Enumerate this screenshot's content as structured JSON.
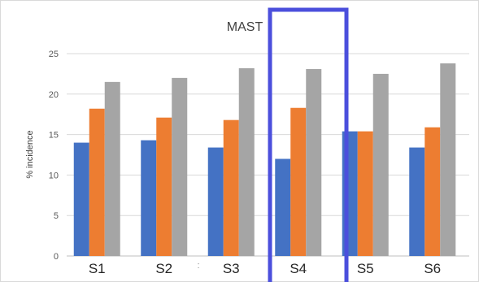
{
  "chart_data": {
    "type": "bar",
    "title": "MAST",
    "xlabel": "",
    "ylabel": "% incidence",
    "categories": [
      "S1",
      "S2",
      "S3",
      "S4",
      "S5",
      "S6"
    ],
    "series": [
      {
        "values": [
          14.0,
          14.3,
          13.4,
          12.0,
          15.4,
          13.4
        ],
        "color": "#4472c4"
      },
      {
        "values": [
          18.2,
          17.1,
          16.8,
          18.3,
          15.4,
          15.9
        ],
        "color": "#ed7d31"
      },
      {
        "values": [
          21.5,
          22.0,
          23.2,
          23.1,
          22.5,
          23.8
        ],
        "color": "#a5a5a5"
      }
    ],
    "ylim": [
      0,
      25
    ],
    "yticks": [
      0,
      5,
      10,
      15,
      20,
      25
    ],
    "grid": true,
    "legend": "none",
    "highlighted_category": "S4",
    "highlight_color": "#4b4fdc",
    "stray_mark": ":"
  }
}
